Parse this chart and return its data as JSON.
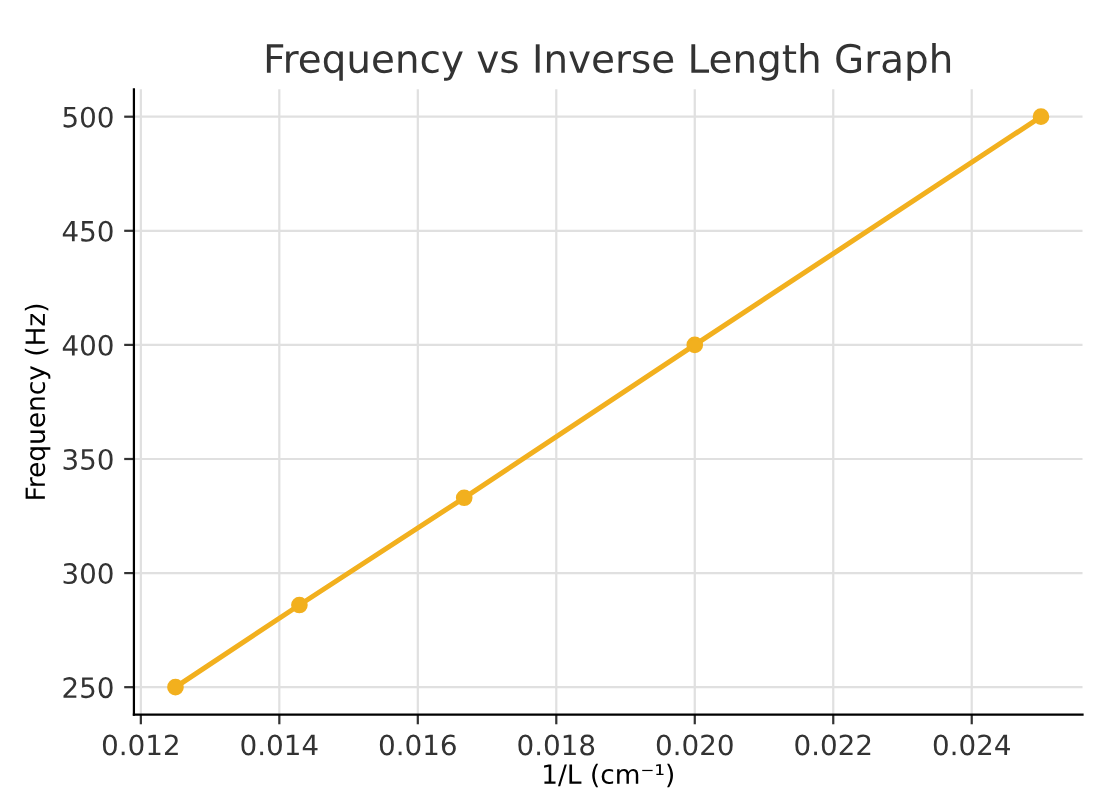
{
  "chart_data": {
    "type": "line",
    "title": "Frequency vs Inverse Length Graph",
    "xlabel": "1/L (cm⁻¹)",
    "ylabel": "Frequency (Hz)",
    "x": [
      0.0125,
      0.01429,
      0.01667,
      0.02,
      0.025
    ],
    "series": [
      {
        "color": "#f2b01e",
        "values": [
          250,
          286,
          333,
          400,
          500
        ]
      }
    ],
    "xlim": [
      0.0119,
      0.0256
    ],
    "ylim": [
      238,
      512
    ],
    "xticks": [
      0.012,
      0.014,
      0.016,
      0.018,
      {
        "value": 0.02,
        "label": "0.020"
      },
      0.022,
      0.024
    ],
    "yticks": [
      250,
      300,
      350,
      400,
      450,
      500
    ],
    "grid": true,
    "marker": "circle",
    "line_style": "solid",
    "legend": false
  }
}
